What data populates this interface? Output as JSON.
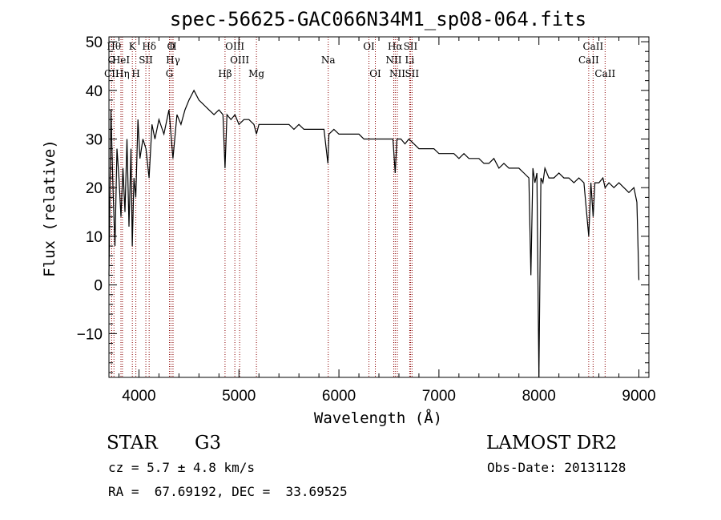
{
  "chart_data": {
    "type": "line",
    "title": "spec-56625-GAC066N34M1_sp08-064.fits",
    "xlabel": "Wavelength (Å)",
    "ylabel": "Flux (relative)",
    "xlim": [
      3700,
      9100
    ],
    "ylim": [
      -19,
      51
    ],
    "xticks": [
      4000,
      5000,
      6000,
      7000,
      8000,
      9000
    ],
    "xtick_labels": [
      "4000",
      "5000",
      "6000",
      "7000",
      "8000",
      "9000"
    ],
    "yticks": [
      -10,
      0,
      10,
      20,
      30,
      40,
      50
    ],
    "ytick_labels": [
      "−10",
      "0",
      "10",
      "20",
      "30",
      "40",
      "50"
    ],
    "grid": false,
    "series": [
      {
        "x": [
          3700,
          3720,
          3740,
          3760,
          3780,
          3800,
          3820,
          3840,
          3860,
          3880,
          3900,
          3920,
          3933,
          3950,
          3968,
          3990,
          4010,
          4040,
          4070,
          4101,
          4130,
          4160,
          4200,
          4250,
          4300,
          4340,
          4380,
          4420,
          4460,
          4500,
          4550,
          4600,
          4650,
          4700,
          4750,
          4800,
          4840,
          4861,
          4880,
          4920,
          4960,
          5000,
          5050,
          5100,
          5150,
          5175,
          5200,
          5250,
          5300,
          5350,
          5400,
          5450,
          5500,
          5550,
          5600,
          5650,
          5700,
          5750,
          5800,
          5850,
          5890,
          5900,
          5950,
          6000,
          6050,
          6100,
          6150,
          6200,
          6250,
          6300,
          6350,
          6400,
          6450,
          6500,
          6540,
          6563,
          6580,
          6620,
          6660,
          6700,
          6750,
          6800,
          6850,
          6900,
          6950,
          7000,
          7050,
          7100,
          7150,
          7200,
          7250,
          7300,
          7350,
          7400,
          7450,
          7500,
          7550,
          7600,
          7650,
          7700,
          7750,
          7800,
          7850,
          7900,
          7920,
          7940,
          7960,
          7980,
          8000,
          8020,
          8040,
          8060,
          8100,
          8150,
          8200,
          8250,
          8300,
          8350,
          8400,
          8450,
          8498,
          8520,
          8542,
          8560,
          8600,
          8640,
          8662,
          8700,
          8750,
          8800,
          8850,
          8900,
          8950,
          8980,
          9000
        ],
        "y": [
          2,
          36,
          20,
          8,
          28,
          22,
          14,
          24,
          15,
          30,
          12,
          28,
          8,
          22,
          18,
          34,
          26,
          30,
          28,
          22,
          33,
          30,
          34,
          31,
          36,
          26,
          35,
          33,
          36,
          38,
          40,
          38,
          37,
          36,
          35,
          36,
          35,
          24,
          35,
          34,
          35,
          33,
          34,
          34,
          33,
          31,
          33,
          33,
          33,
          33,
          33,
          33,
          33,
          32,
          33,
          32,
          32,
          32,
          32,
          32,
          25,
          31,
          32,
          31,
          31,
          31,
          31,
          31,
          30,
          30,
          30,
          30,
          30,
          30,
          30,
          23,
          30,
          30,
          29,
          30,
          29,
          28,
          28,
          28,
          28,
          27,
          27,
          27,
          27,
          26,
          27,
          26,
          26,
          26,
          25,
          25,
          26,
          24,
          25,
          24,
          24,
          24,
          23,
          22,
          2,
          24,
          21,
          23,
          -19,
          22,
          21,
          24,
          22,
          22,
          23,
          22,
          22,
          21,
          22,
          21,
          10,
          21,
          14,
          21,
          21,
          22,
          20,
          21,
          20,
          21,
          20,
          19,
          20,
          17,
          1
        ]
      }
    ],
    "lines": [
      {
        "label": "CII",
        "x": 3727,
        "row": 3
      },
      {
        "label": "Hθ",
        "x": 3750,
        "row": 1
      },
      {
        "label": "O",
        "x": 3727,
        "row": 2
      },
      {
        "label": "Hη",
        "x": 3835,
        "row": 3
      },
      {
        "label": "HeI",
        "x": 3820,
        "row": 2
      },
      {
        "label": "K",
        "x": 3934,
        "row": 1
      },
      {
        "label": "SII",
        "x": 4069,
        "row": 2
      },
      {
        "label": "H",
        "x": 3969,
        "row": 3
      },
      {
        "label": "Hδ",
        "x": 4102,
        "row": 1
      },
      {
        "label": "O",
        "x": 4320,
        "row": 1
      },
      {
        "label": "II",
        "x": 4340,
        "row": 1
      },
      {
        "label": "Hγ",
        "x": 4341,
        "row": 2
      },
      {
        "label": "G",
        "x": 4305,
        "row": 3
      },
      {
        "label": "Hβ",
        "x": 4861,
        "row": 3
      },
      {
        "label": "OIII",
        "x": 4959,
        "row": 1
      },
      {
        "label": "OIII",
        "x": 5007,
        "row": 2
      },
      {
        "label": "Mg",
        "x": 5175,
        "row": 3
      },
      {
        "label": "Na",
        "x": 5893,
        "row": 2
      },
      {
        "label": "OI",
        "x": 6300,
        "row": 1
      },
      {
        "label": "OI",
        "x": 6364,
        "row": 3
      },
      {
        "label": "Hα",
        "x": 6563,
        "row": 1
      },
      {
        "label": "SII",
        "x": 6716,
        "row": 1
      },
      {
        "label": "NII",
        "x": 6548,
        "row": 2
      },
      {
        "label": "Li",
        "x": 6708,
        "row": 2
      },
      {
        "label": "NII",
        "x": 6584,
        "row": 3
      },
      {
        "label": "SII",
        "x": 6731,
        "row": 3
      },
      {
        "label": "CaII",
        "x": 8498,
        "row": 2
      },
      {
        "label": "CaII",
        "x": 8542,
        "row": 1
      },
      {
        "label": "CaII",
        "x": 8662,
        "row": 3
      }
    ]
  },
  "info": {
    "class": "STAR",
    "subclass": "G3",
    "cz": "cz = 5.7 ± 4.8 km/s",
    "radec": "RA =  67.69192, DEC =  33.69525",
    "survey": "LAMOST DR2",
    "obsdate": "Obs-Date: 20131128"
  },
  "colors": {
    "lines": "#8b0000",
    "spectrum": "#000000",
    "axes": "#000000"
  }
}
